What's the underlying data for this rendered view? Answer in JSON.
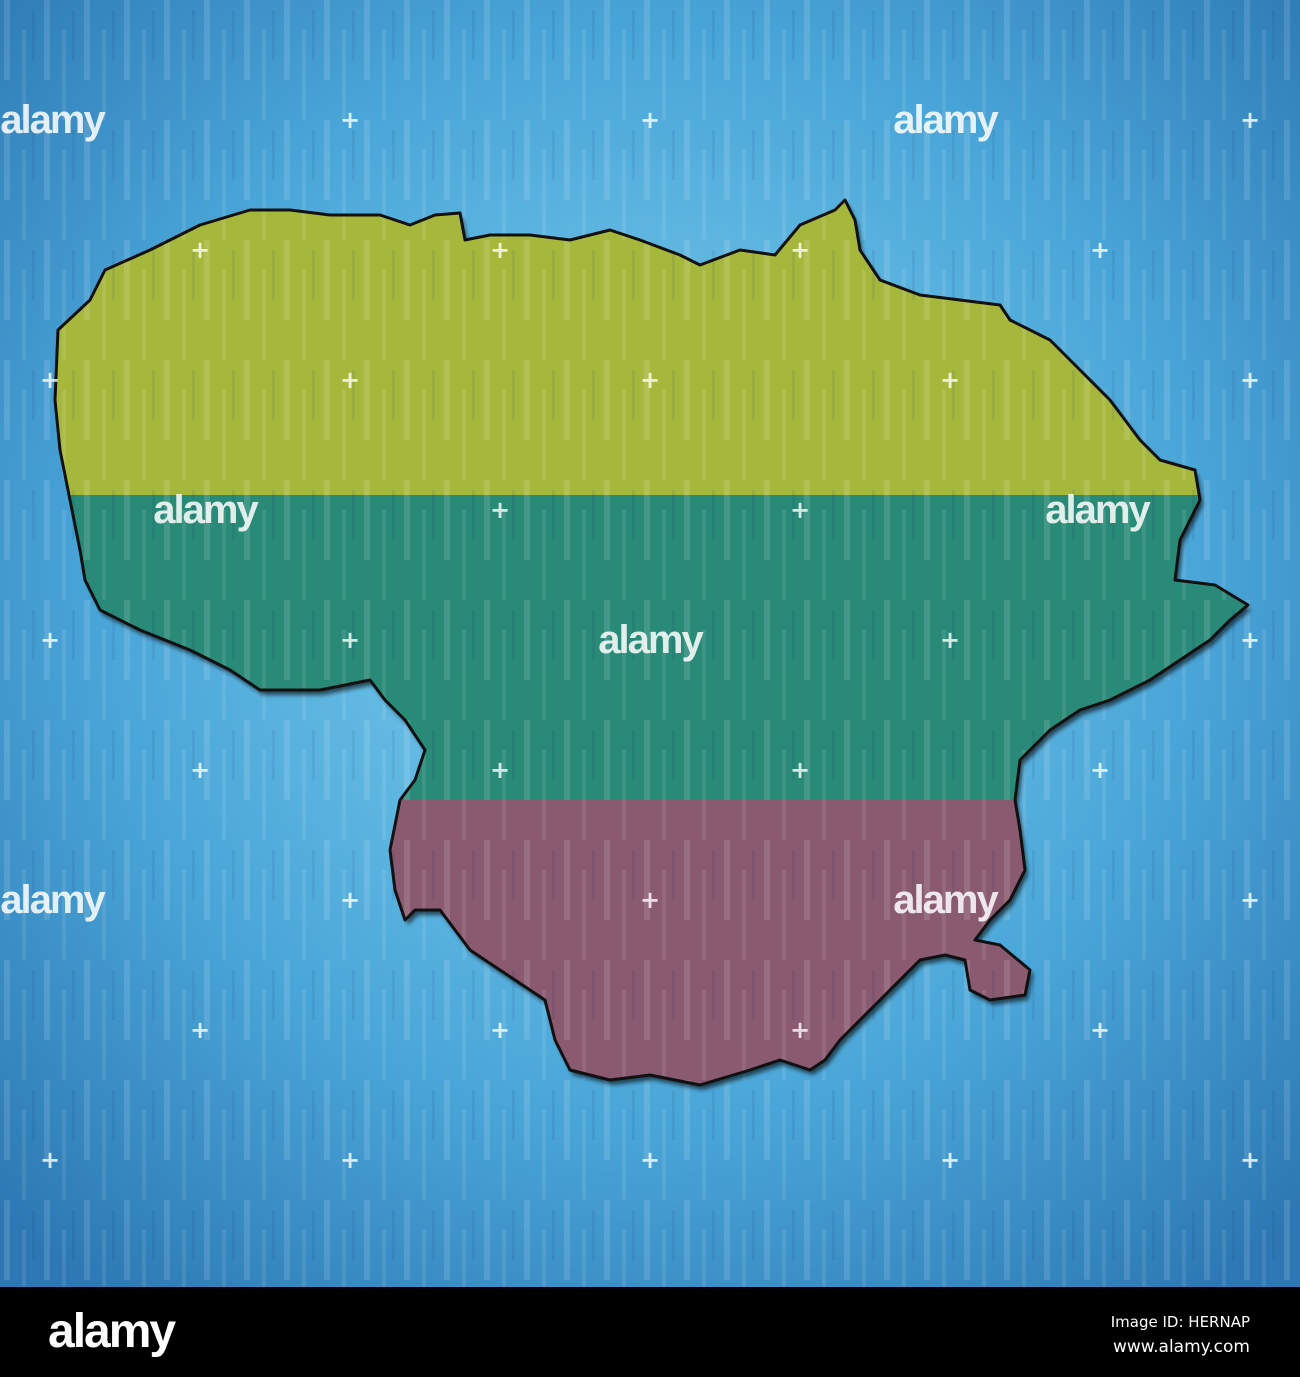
{
  "watermark": "alamy",
  "footer": {
    "logo": "alamy",
    "image_id": "Image ID: HERNAP",
    "website": "www.alamy.com"
  },
  "map": {
    "country": "Lithuania",
    "flag_colors": {
      "top": "#a6b83c",
      "middle": "#2a8a78",
      "bottom": "#8a5a70"
    },
    "background_color": "#4aa6d8",
    "outline_color": "#111111"
  }
}
